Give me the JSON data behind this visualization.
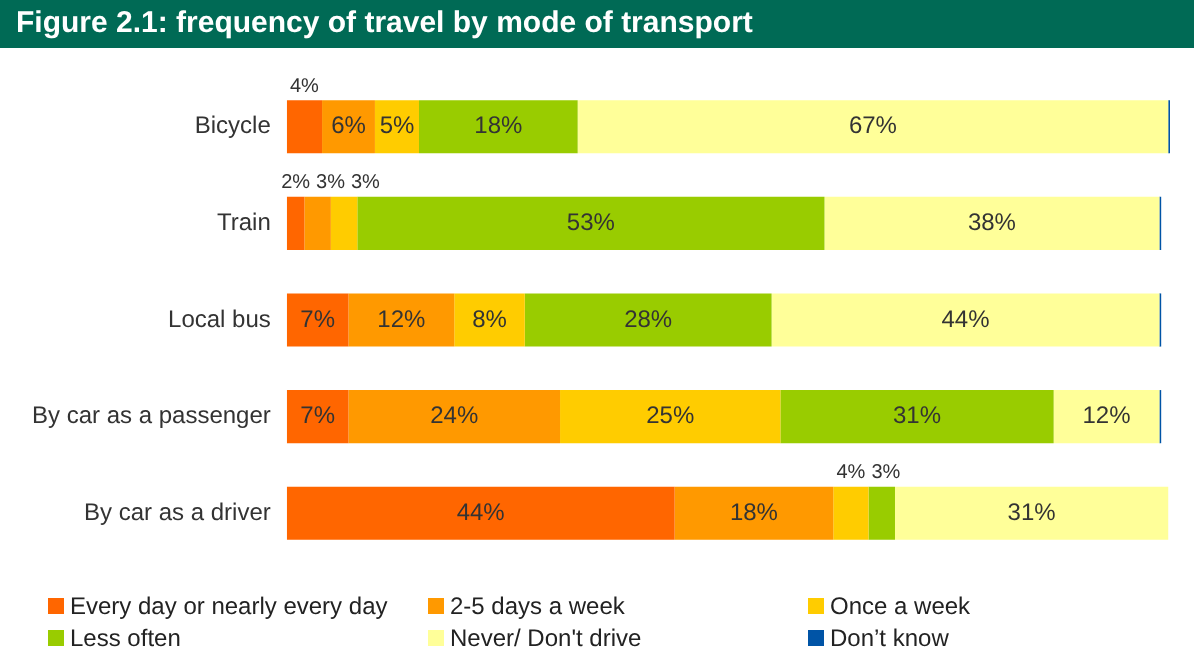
{
  "chart_data": {
    "type": "bar",
    "orientation": "horizontal",
    "stacked": true,
    "title": "Figure 2.1: frequency of travel by mode of transport",
    "categories": [
      "Bicycle",
      "Train",
      "Local bus",
      "By car as a passenger",
      "By car as a driver"
    ],
    "legend": "bottom",
    "grid": false,
    "tick_labels": "y",
    "series": [
      {
        "name": "Every day or nearly every day",
        "color": "#ff6600",
        "values": [
          4,
          2,
          7,
          7,
          44
        ],
        "value_labels": [
          "4%",
          "2%",
          "7%",
          "7%",
          "44%"
        ]
      },
      {
        "name": "2-5 days a week",
        "color": "#ff9900",
        "values": [
          6,
          3,
          12,
          24,
          18
        ],
        "value_labels": [
          "6%",
          "3%",
          "12%",
          "24%",
          "18%"
        ]
      },
      {
        "name": "Once a week",
        "color": "#ffcc00",
        "values": [
          5,
          3,
          8,
          25,
          4
        ],
        "value_labels": [
          "5%",
          "3%",
          "8%",
          "25%",
          "4%"
        ]
      },
      {
        "name": "Less often",
        "color": "#99cc00",
        "values": [
          18,
          53,
          28,
          31,
          3
        ],
        "value_labels": [
          "18%",
          "53%",
          "28%",
          "31%",
          "3%"
        ]
      },
      {
        "name": "Never/ Don't drive",
        "color": "#ffff99",
        "values": [
          67,
          38,
          44,
          12,
          31
        ],
        "value_labels": [
          "67%",
          "38%",
          "44%",
          "12%",
          "31%"
        ]
      },
      {
        "name": "Don’t know",
        "color": "#0054a6",
        "values": [
          0.2,
          0.2,
          0.2,
          0.2,
          null
        ],
        "value_labels": [
          null,
          null,
          null,
          null,
          null
        ]
      }
    ]
  }
}
